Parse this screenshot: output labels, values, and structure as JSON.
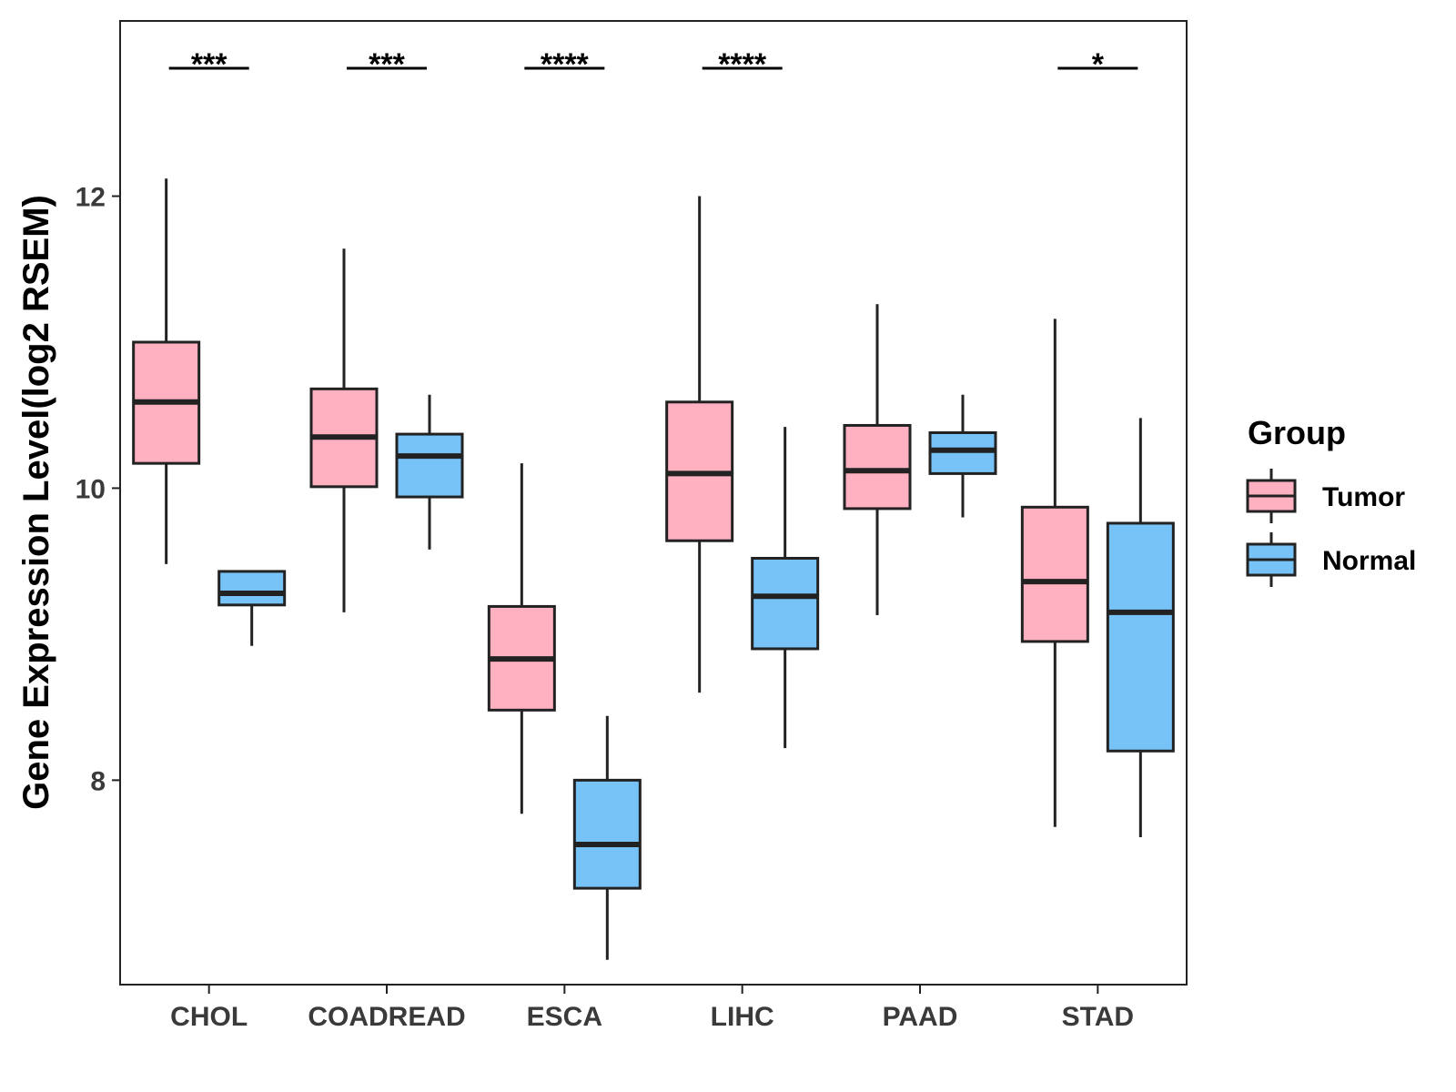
{
  "chart_data": {
    "type": "boxplot",
    "title": "",
    "ylabel": "Gene Expression Level(log2 RSEM)",
    "xlabel": "",
    "ylim": [
      6.6,
      13.2
    ],
    "yticks": [
      8,
      10,
      12
    ],
    "categories": [
      "CHOL",
      "COADREAD",
      "ESCA",
      "LIHC",
      "PAAD",
      "STAD"
    ],
    "legend": {
      "title": "Group",
      "position": "right",
      "entries": [
        {
          "name": "Tumor",
          "color": "#FFB1C1"
        },
        {
          "name": "Normal",
          "color": "#77C3F8"
        }
      ]
    },
    "series": [
      {
        "name": "Tumor",
        "color": "#FFB1C1",
        "boxes": [
          {
            "min": 9.48,
            "q1": 10.17,
            "median": 10.59,
            "q3": 11.0,
            "max": 12.12
          },
          {
            "min": 9.15,
            "q1": 10.01,
            "median": 10.35,
            "q3": 10.68,
            "max": 11.64
          },
          {
            "min": 7.77,
            "q1": 8.48,
            "median": 8.83,
            "q3": 9.19,
            "max": 10.17
          },
          {
            "min": 8.6,
            "q1": 9.64,
            "median": 10.1,
            "q3": 10.59,
            "max": 12.0
          },
          {
            "min": 9.13,
            "q1": 9.86,
            "median": 10.12,
            "q3": 10.43,
            "max": 11.26
          },
          {
            "min": 7.68,
            "q1": 8.95,
            "median": 9.36,
            "q3": 9.87,
            "max": 11.16
          }
        ]
      },
      {
        "name": "Normal",
        "color": "#77C3F8",
        "boxes": [
          {
            "min": 8.92,
            "q1": 9.2,
            "median": 9.28,
            "q3": 9.43,
            "max": 9.43
          },
          {
            "min": 9.58,
            "q1": 9.94,
            "median": 10.22,
            "q3": 10.37,
            "max": 10.64
          },
          {
            "min": 6.77,
            "q1": 7.26,
            "median": 7.56,
            "q3": 8.0,
            "max": 8.44
          },
          {
            "min": 8.22,
            "q1": 8.9,
            "median": 9.26,
            "q3": 9.52,
            "max": 10.42
          },
          {
            "min": 9.8,
            "q1": 10.1,
            "median": 10.26,
            "q3": 10.38,
            "max": 10.64
          },
          {
            "min": 7.61,
            "q1": 8.2,
            "median": 9.15,
            "q3": 9.76,
            "max": 10.48
          }
        ]
      }
    ],
    "significance": [
      {
        "category": "CHOL",
        "label": "***"
      },
      {
        "category": "COADREAD",
        "label": "***"
      },
      {
        "category": "ESCA",
        "label": "****"
      },
      {
        "category": "LIHC",
        "label": "****"
      },
      {
        "category": "PAAD",
        "label": ""
      },
      {
        "category": "STAD",
        "label": "*"
      }
    ]
  }
}
